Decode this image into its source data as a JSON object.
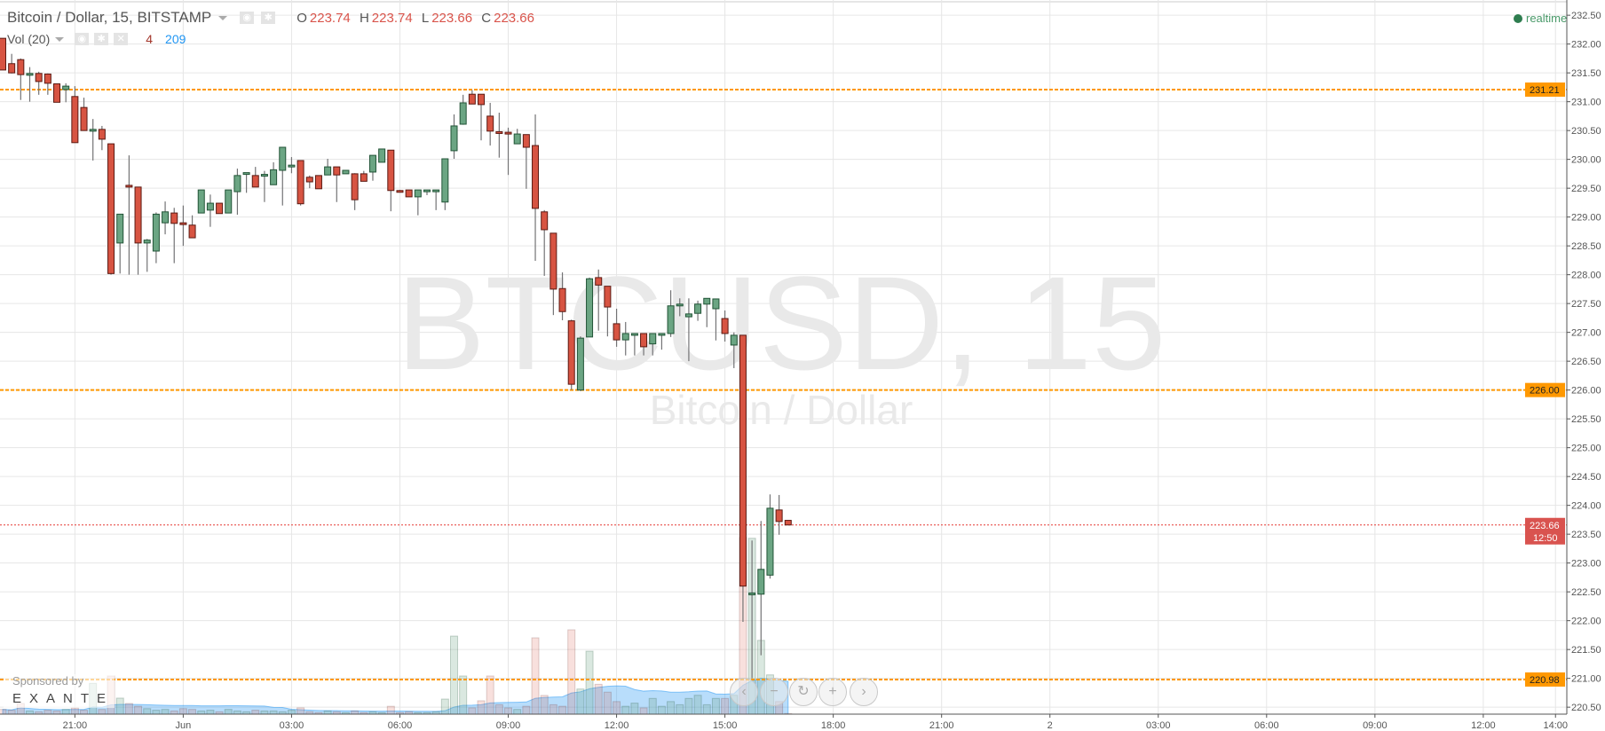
{
  "header": {
    "symbol_title": "Bitcoin / Dollar, 15, BITSTAMP",
    "ohlc": {
      "o_label": "O",
      "o": "223.74",
      "h_label": "H",
      "h": "223.74",
      "l_label": "L",
      "l": "223.66",
      "c_label": "C",
      "c": "223.66"
    },
    "volume_label": "Vol (20)",
    "volume_value": "4",
    "volume_ma_value": "209",
    "realtime_label": "realtime"
  },
  "watermark": {
    "symbol": "BTCUSD, 15",
    "description": "Bitcoin / Dollar"
  },
  "sponsor": {
    "line1": "Sponsored by",
    "line2": "EXANTE"
  },
  "nav_buttons": [
    {
      "name": "scroll-left",
      "glyph": "‹"
    },
    {
      "name": "zoom-out",
      "glyph": "−"
    },
    {
      "name": "reset",
      "glyph": "↻"
    },
    {
      "name": "zoom-in",
      "glyph": "+"
    },
    {
      "name": "scroll-right",
      "glyph": "›"
    }
  ],
  "colors": {
    "up": "#6ba583",
    "up_border": "#225437",
    "down": "#d75442",
    "down_border": "#5b1a13",
    "wick": "#737375",
    "hline": "#ff9800",
    "last_price": "#e53935",
    "volume_ma": "#2196f3",
    "grid": "#e6e6e6"
  },
  "chart_data": {
    "type": "candlestick",
    "interval": "15",
    "first_bar_time": "19:00",
    "ylim": [
      220.4,
      232.6
    ],
    "y_ticks": [
      "232.50",
      "232.00",
      "231.50",
      "231.00",
      "230.50",
      "230.00",
      "229.50",
      "229.00",
      "228.50",
      "228.00",
      "227.50",
      "227.00",
      "226.50",
      "226.00",
      "225.50",
      "225.00",
      "224.50",
      "224.00",
      "223.50",
      "223.00",
      "222.50",
      "222.00",
      "221.50",
      "221.00",
      "220.50"
    ],
    "x_ticks": [
      "21:00",
      "Jun",
      "03:00",
      "06:00",
      "09:00",
      "12:00",
      "15:00",
      "18:00",
      "21:00",
      "2",
      "03:00",
      "06:00",
      "09:00",
      "12:00",
      "14:00"
    ],
    "grid": true,
    "horizontal_lines": [
      {
        "price": 231.21,
        "label": "231.21"
      },
      {
        "price": 226.0,
        "label": "226.00"
      },
      {
        "price": 220.98,
        "label": "220.98"
      }
    ],
    "last_price": {
      "price": 223.66,
      "label": "223.66",
      "countdown": "12:50"
    },
    "candles_ohlcv": [
      [
        232.1,
        232.1,
        231.55,
        231.55,
        30
      ],
      [
        231.66,
        231.83,
        231.49,
        231.5,
        25
      ],
      [
        231.73,
        231.75,
        231.03,
        231.47,
        68
      ],
      [
        231.48,
        231.6,
        231.0,
        231.49,
        20
      ],
      [
        231.49,
        231.52,
        231.12,
        231.35,
        15
      ],
      [
        231.48,
        231.49,
        231.12,
        231.32,
        25
      ],
      [
        231.31,
        231.31,
        230.99,
        230.99,
        20
      ],
      [
        231.21,
        231.32,
        230.99,
        231.27,
        30
      ],
      [
        231.09,
        231.27,
        230.29,
        230.29,
        40
      ],
      [
        230.9,
        231.07,
        230.5,
        230.5,
        25
      ],
      [
        230.51,
        230.7,
        229.98,
        230.52,
        196
      ],
      [
        230.52,
        230.58,
        230.16,
        230.35,
        30
      ],
      [
        230.27,
        230.27,
        228.0,
        228.02,
        243
      ],
      [
        228.55,
        229.05,
        228.02,
        229.05,
        102
      ],
      [
        229.55,
        230.07,
        228.0,
        229.52,
        68
      ],
      [
        229.52,
        229.52,
        228.0,
        228.55,
        50
      ],
      [
        228.55,
        228.62,
        228.05,
        228.6,
        35
      ],
      [
        228.41,
        229.08,
        228.2,
        229.05,
        25
      ],
      [
        228.9,
        229.27,
        228.7,
        229.09,
        30
      ],
      [
        229.07,
        229.16,
        228.2,
        228.89,
        20
      ],
      [
        228.9,
        229.2,
        228.5,
        228.87,
        35
      ],
      [
        228.86,
        229.03,
        228.64,
        228.64,
        30
      ],
      [
        229.07,
        229.47,
        229.07,
        229.47,
        20
      ],
      [
        229.12,
        229.39,
        228.83,
        229.24,
        25
      ],
      [
        229.24,
        229.24,
        229.06,
        229.06,
        15
      ],
      [
        229.07,
        229.47,
        229.07,
        229.47,
        30
      ],
      [
        229.44,
        229.84,
        229.04,
        229.72,
        20
      ],
      [
        229.74,
        229.77,
        229.42,
        229.77,
        15
      ],
      [
        229.72,
        229.87,
        229.52,
        229.52,
        25
      ],
      [
        229.73,
        229.8,
        229.26,
        229.74,
        20
      ],
      [
        229.56,
        229.95,
        229.56,
        229.82,
        20
      ],
      [
        229.81,
        230.21,
        229.2,
        230.21,
        15
      ],
      [
        229.87,
        230.04,
        229.76,
        229.9,
        25
      ],
      [
        229.98,
        229.98,
        229.2,
        229.23,
        40
      ],
      [
        229.69,
        229.72,
        229.5,
        229.61,
        15
      ],
      [
        229.72,
        229.72,
        229.49,
        229.49,
        10
      ],
      [
        229.73,
        230.01,
        229.73,
        229.87,
        20
      ],
      [
        229.87,
        229.87,
        229.26,
        229.73,
        15
      ],
      [
        229.75,
        229.81,
        229.75,
        229.81,
        10
      ],
      [
        229.75,
        229.76,
        229.12,
        229.3,
        20
      ],
      [
        229.75,
        229.8,
        229.62,
        229.62,
        10
      ],
      [
        229.78,
        230.07,
        229.63,
        230.07,
        15
      ],
      [
        229.95,
        230.18,
        229.95,
        230.18,
        10
      ],
      [
        230.16,
        230.16,
        229.1,
        229.46,
        50
      ],
      [
        229.46,
        229.47,
        229.44,
        229.45,
        10
      ],
      [
        229.47,
        229.47,
        229.35,
        229.35,
        15
      ],
      [
        229.35,
        229.47,
        229.03,
        229.47,
        10
      ],
      [
        229.46,
        229.47,
        229.38,
        229.47,
        10
      ],
      [
        229.46,
        229.47,
        229.12,
        229.47,
        15
      ],
      [
        229.26,
        230.01,
        229.12,
        230.01,
        96
      ],
      [
        230.15,
        230.78,
        230.01,
        230.58,
        497
      ],
      [
        230.61,
        231.12,
        230.6,
        230.98,
        243
      ],
      [
        231.13,
        231.2,
        230.98,
        230.96,
        40
      ],
      [
        231.13,
        231.13,
        230.33,
        230.95,
        85
      ],
      [
        230.75,
        230.98,
        230.24,
        230.49,
        243
      ],
      [
        230.48,
        230.81,
        230.03,
        230.47,
        60
      ],
      [
        230.47,
        230.55,
        229.73,
        230.45,
        40
      ],
      [
        230.27,
        230.53,
        230.27,
        230.44,
        30
      ],
      [
        230.43,
        230.43,
        229.49,
        230.21,
        50
      ],
      [
        230.24,
        230.78,
        228.24,
        229.15,
        486
      ],
      [
        229.09,
        229.12,
        227.98,
        228.78,
        119
      ],
      [
        228.72,
        228.72,
        227.3,
        227.75,
        60
      ],
      [
        227.76,
        228.04,
        227.21,
        227.36,
        50
      ],
      [
        227.2,
        227.22,
        226.0,
        226.1,
        537
      ],
      [
        226.0,
        226.93,
        225.98,
        226.9,
        160
      ],
      [
        226.92,
        227.95,
        226.92,
        227.93,
        401
      ],
      [
        227.95,
        228.09,
        227.03,
        227.82,
        190
      ],
      [
        227.8,
        227.8,
        226.93,
        227.44,
        140
      ],
      [
        227.15,
        227.41,
        226.75,
        226.87,
        80
      ],
      [
        226.87,
        227.18,
        226.6,
        226.98,
        50
      ],
      [
        226.97,
        226.98,
        226.6,
        226.98,
        70
      ],
      [
        226.98,
        226.98,
        226.6,
        226.75,
        40
      ],
      [
        226.8,
        226.98,
        226.6,
        226.98,
        100
      ],
      [
        226.97,
        226.98,
        226.7,
        226.98,
        50
      ],
      [
        226.98,
        227.73,
        226.92,
        227.46,
        80
      ],
      [
        227.46,
        227.59,
        227.28,
        227.49,
        60
      ],
      [
        227.27,
        227.59,
        226.5,
        227.32,
        100
      ],
      [
        227.33,
        227.55,
        227.2,
        227.49,
        120
      ],
      [
        227.49,
        227.59,
        227.09,
        227.59,
        60
      ],
      [
        227.41,
        227.58,
        226.86,
        227.58,
        100
      ],
      [
        227.24,
        227.38,
        226.84,
        226.98,
        100
      ],
      [
        226.78,
        227.0,
        226.38,
        226.95,
        120
      ],
      [
        226.95,
        226.95,
        221.98,
        222.6,
        1125
      ],
      [
        222.47,
        223.39,
        221.0,
        222.48,
        1120
      ],
      [
        222.46,
        223.73,
        221.4,
        222.89,
        470
      ],
      [
        222.79,
        224.19,
        222.73,
        223.95,
        250
      ],
      [
        223.92,
        224.18,
        223.49,
        223.72,
        80
      ],
      [
        223.74,
        223.74,
        223.66,
        223.66,
        4
      ]
    ],
    "volume_ma_period": 20
  }
}
